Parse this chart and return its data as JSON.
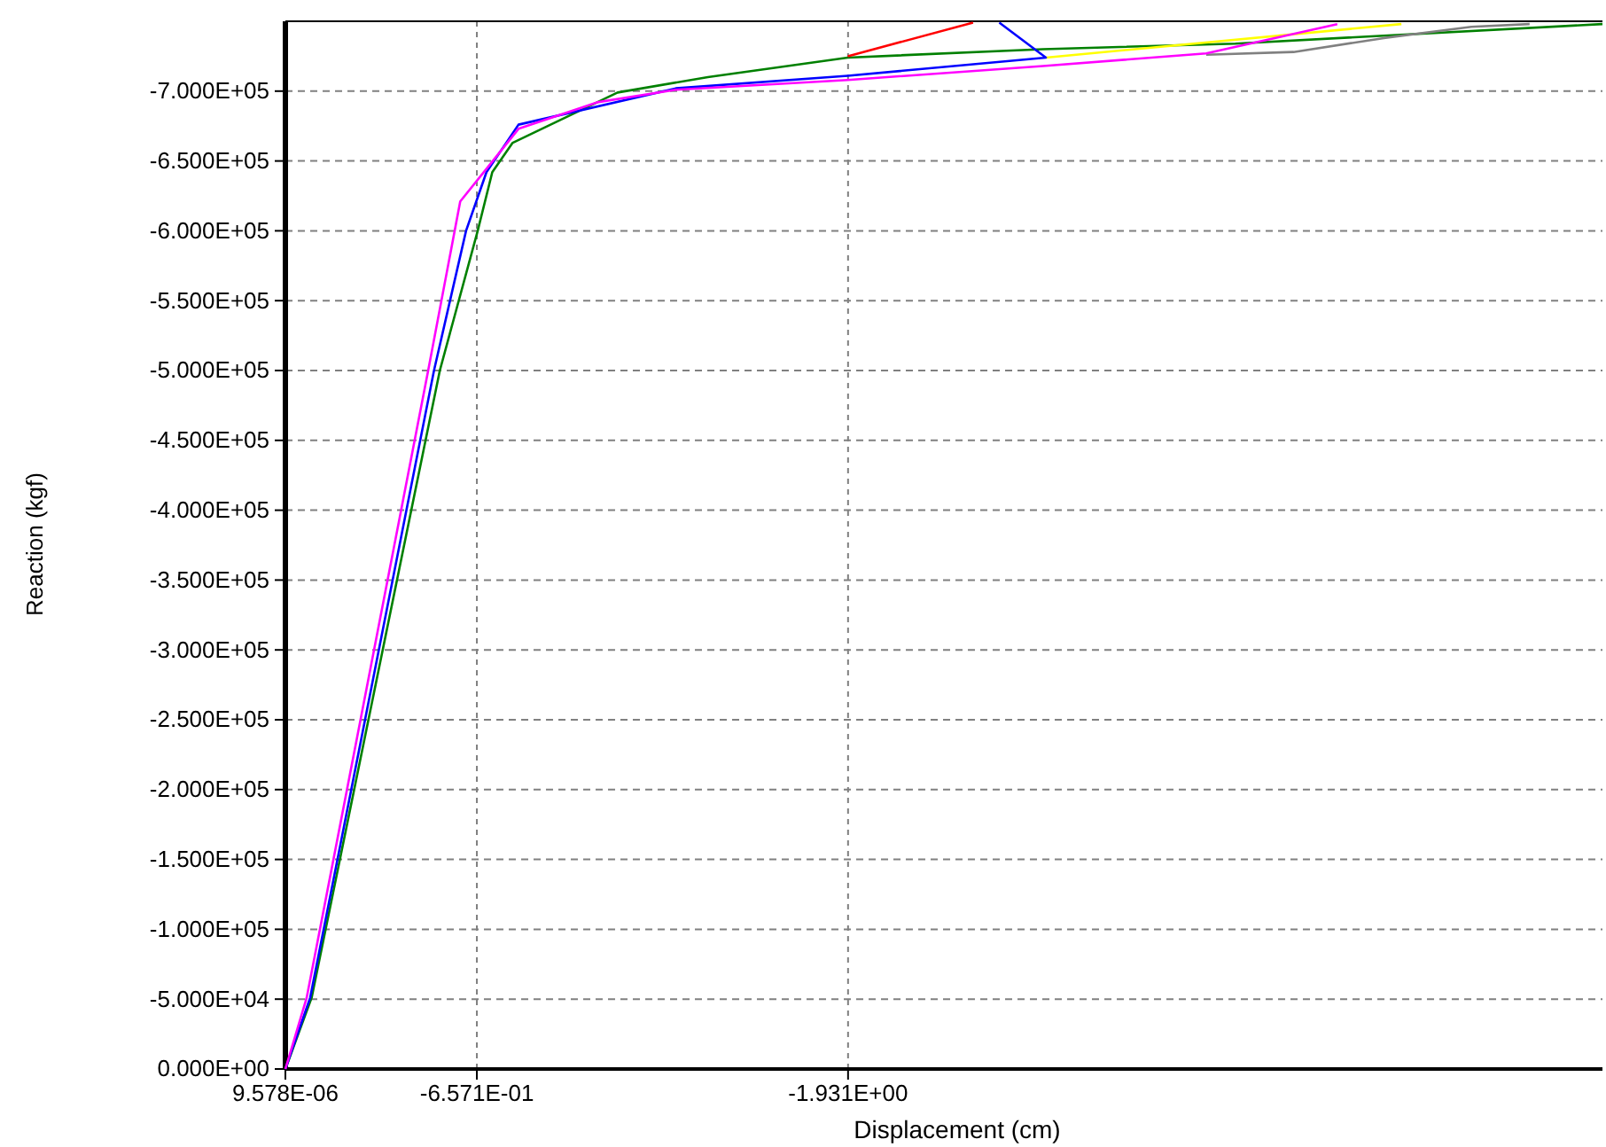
{
  "chart_data": {
    "type": "line",
    "xlabel": "Displacement (cm)",
    "ylabel": "Reaction (kgf)",
    "xlim": [
      9.578e-06,
      -4.52
    ],
    "ylim": [
      0,
      -750000
    ],
    "xticks": [
      {
        "value": 9.578e-06,
        "label": "9.578E-06"
      },
      {
        "value": -0.6571,
        "label": "-6.571E-01"
      },
      {
        "value": -1.931,
        "label": "-1.931E+00"
      }
    ],
    "yticks": [
      {
        "value": 0,
        "label": "0.000E+00"
      },
      {
        "value": -50000,
        "label": "-5.000E+04"
      },
      {
        "value": -100000,
        "label": "-1.000E+05"
      },
      {
        "value": -150000,
        "label": "-1.500E+05"
      },
      {
        "value": -200000,
        "label": "-2.000E+05"
      },
      {
        "value": -250000,
        "label": "-2.500E+05"
      },
      {
        "value": -300000,
        "label": "-3.000E+05"
      },
      {
        "value": -350000,
        "label": "-3.500E+05"
      },
      {
        "value": -400000,
        "label": "-4.000E+05"
      },
      {
        "value": -450000,
        "label": "-4.500E+05"
      },
      {
        "value": -500000,
        "label": "-5.000E+05"
      },
      {
        "value": -550000,
        "label": "-5.500E+05"
      },
      {
        "value": -600000,
        "label": "-6.000E+05"
      },
      {
        "value": -650000,
        "label": "-6.500E+05"
      },
      {
        "value": -700000,
        "label": "-7.000E+05"
      }
    ],
    "grid": true,
    "line_style": "solid",
    "marker": "none",
    "series": [
      {
        "color": "#008000",
        "x": [
          0,
          -0.09,
          -0.53,
          -0.66,
          -0.71,
          -0.78,
          -1.14,
          -1.45,
          -1.93,
          -2.6,
          -3.26,
          -4.52
        ],
        "values": [
          0,
          -51000,
          -500000,
          -600000,
          -642000,
          -663000,
          -699000,
          -710000,
          -724000,
          -730000,
          -734000,
          -748000
        ]
      },
      {
        "color": "#ff0000",
        "x": [
          -1.93,
          -2.36
        ],
        "values": [
          -725000,
          -749000
        ]
      },
      {
        "color": "#ffff00",
        "x": [
          -2.61,
          -3.83
        ],
        "values": [
          -724000,
          -748000
        ]
      },
      {
        "color": "#808080",
        "x": [
          -3.16,
          -3.46,
          -3.77,
          -4.07,
          -4.27
        ],
        "values": [
          -726000,
          -728000,
          -738000,
          -746000,
          -748000
        ]
      },
      {
        "color": "#0000ff",
        "x": [
          0,
          -0.085,
          -0.51,
          -0.62,
          -0.69,
          -0.8,
          -1.34,
          -1.93,
          -2.61,
          -2.45
        ],
        "values": [
          0,
          -51000,
          -500000,
          -600000,
          -642000,
          -676000,
          -702000,
          -711000,
          -724000,
          -749000
        ]
      },
      {
        "color": "#ff00ff",
        "x": [
          0,
          -0.073,
          -0.49,
          -0.6,
          -0.7,
          -0.8,
          -1.07,
          -1.34,
          -1.93,
          -2.6,
          -3.16,
          -3.61
        ],
        "values": [
          0,
          -51000,
          -500000,
          -621000,
          -647000,
          -673000,
          -692000,
          -701000,
          -708000,
          -718000,
          -727000,
          -748000
        ]
      }
    ]
  }
}
